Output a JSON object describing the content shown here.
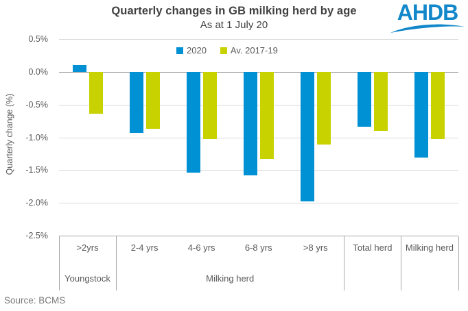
{
  "header": {
    "title": "Quarterly changes in GB milking herd by age",
    "subtitle": "As at 1 July 20",
    "logo_text": "AHDB"
  },
  "footer": {
    "source": "Source: BCMS"
  },
  "colors": {
    "series_2020": "#0090D4",
    "series_avg_2017_19": "#C8D200",
    "logo_blue": "#1287C9",
    "title_text": "#404040",
    "axis_text": "#595959",
    "zero_line": "#999999",
    "gridline": "#D9D9D9",
    "source_text": "#7A7A7A"
  },
  "chart_data": {
    "type": "bar",
    "title": "Quarterly changes in GB milking herd by age",
    "subtitle": "As at 1 July 20",
    "xlabel": "",
    "ylabel": "Quarterly change (%)",
    "unit": "%",
    "ylim": [
      -2.5,
      0.5
    ],
    "y_tick_labels": [
      "0.5%",
      "0.0%",
      "-0.5%",
      "-1.0%",
      "-1.5%",
      "-2.0%",
      "-2.5%"
    ],
    "grid": true,
    "legend_position": "top-center",
    "categories": [
      ">2yrs",
      "2-4 yrs",
      "4-6 yrs",
      "6-8 yrs",
      ">8 yrs",
      "Total herd",
      "Milking herd"
    ],
    "category_groups": [
      {
        "label": "Youngstock",
        "from": 0,
        "to": 0
      },
      {
        "label": "Milking herd",
        "from": 1,
        "to": 4
      },
      {
        "label": "",
        "from": 5,
        "to": 5
      },
      {
        "label": "",
        "from": 6,
        "to": 6
      }
    ],
    "series": [
      {
        "name": "2020",
        "color": "#0090D4",
        "values": [
          0.1,
          -0.93,
          -1.54,
          -1.58,
          -1.98,
          -0.84,
          -1.31
        ]
      },
      {
        "name": "Av. 2017-19",
        "color": "#C8D200",
        "values": [
          -0.64,
          -0.87,
          -1.03,
          -1.33,
          -1.11,
          -0.9,
          -1.02
        ]
      }
    ]
  }
}
